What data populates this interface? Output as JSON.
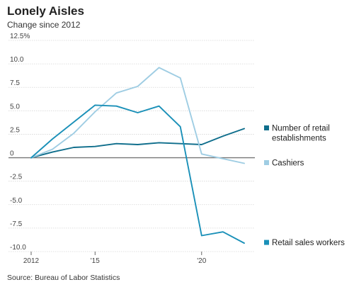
{
  "header": {
    "title": "Lonely Aisles",
    "subtitle": "Change since 2012"
  },
  "footer": {
    "source": "Source: Bureau of Labor Statistics"
  },
  "chart_data": {
    "type": "line",
    "title": "Lonely Aisles",
    "subtitle": "Change since 2012",
    "xlabel": "",
    "ylabel": "",
    "xlim": [
      2012,
      2022.5
    ],
    "ylim": [
      -10,
      12.5
    ],
    "x_ticks": [
      {
        "value": 2012,
        "label": "2012"
      },
      {
        "value": 2015,
        "label": "'15"
      },
      {
        "value": 2020,
        "label": "'20"
      }
    ],
    "y_ticks": [
      {
        "value": 12.5,
        "label": "12.5%"
      },
      {
        "value": 10,
        "label": "10.0"
      },
      {
        "value": 7.5,
        "label": "7.5"
      },
      {
        "value": 5,
        "label": "5.0"
      },
      {
        "value": 2.5,
        "label": "2.5"
      },
      {
        "value": 0,
        "label": "0"
      },
      {
        "value": -2.5,
        "label": "-2.5"
      },
      {
        "value": -5,
        "label": "-5.0"
      },
      {
        "value": -7.5,
        "label": "-7.5"
      },
      {
        "value": -10,
        "label": "-10.0"
      }
    ],
    "grid": true,
    "legend": "direct labels at right",
    "series": [
      {
        "name": "Number of retail establishments",
        "label_lines": [
          "Number of retail",
          "establishments"
        ],
        "color": "#0f6e8c",
        "x": [
          2012,
          2013,
          2014,
          2015,
          2016,
          2017,
          2018,
          2019,
          2020,
          2021,
          2022
        ],
        "y": [
          0,
          0.6,
          1.1,
          1.2,
          1.5,
          1.4,
          1.6,
          1.5,
          1.4,
          2.3,
          3.1
        ]
      },
      {
        "name": "Cashiers",
        "label_lines": [
          "Cashiers"
        ],
        "color": "#9fcde3",
        "x": [
          2012,
          2013,
          2014,
          2015,
          2016,
          2017,
          2018,
          2019,
          2020,
          2021,
          2022
        ],
        "y": [
          0,
          0.9,
          2.6,
          4.9,
          6.9,
          7.6,
          9.6,
          8.5,
          0.4,
          -0.1,
          -0.6
        ]
      },
      {
        "name": "Retail sales workers",
        "label_lines": [
          "Retail sales workers"
        ],
        "color": "#1a90b8",
        "x": [
          2012,
          2013,
          2014,
          2015,
          2016,
          2017,
          2018,
          2019,
          2020,
          2021,
          2022
        ],
        "y": [
          0,
          2.0,
          3.8,
          5.6,
          5.5,
          4.8,
          5.5,
          3.3,
          -8.3,
          -7.9,
          -9.1
        ]
      }
    ]
  }
}
